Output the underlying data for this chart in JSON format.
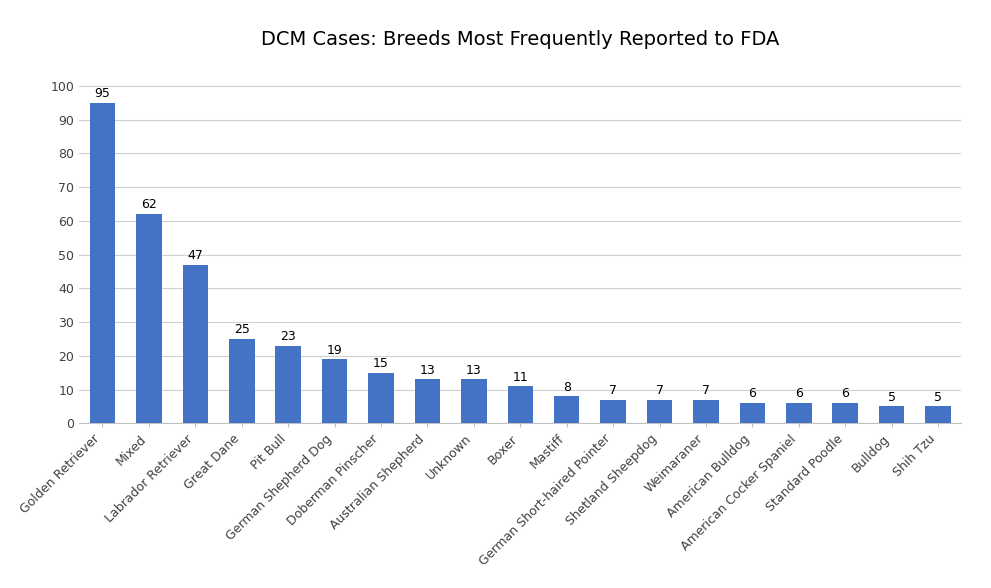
{
  "title": "DCM Cases: Breeds Most Frequently Reported to FDA",
  "categories": [
    "Golden Retriever",
    "Mixed",
    "Labrador Retriever",
    "Great Dane",
    "Pit Bull",
    "German Shepherd Dog",
    "Doberman Pinscher",
    "Australian Shepherd",
    "Unknown",
    "Boxer",
    "Mastiff",
    "German Short-haired Pointer",
    "Shetland Sheepdog",
    "Weimaraner",
    "American Bulldog",
    "American Cocker Spaniel",
    "Standard Poodle",
    "Bulldog",
    "Shih Tzu"
  ],
  "values": [
    95,
    62,
    47,
    25,
    23,
    19,
    15,
    13,
    13,
    11,
    8,
    7,
    7,
    7,
    6,
    6,
    6,
    5,
    5
  ],
  "bar_color": "#4472C4",
  "background_color": "#FFFFFF",
  "title_fontsize": 14,
  "tick_fontsize": 9,
  "value_fontsize": 9,
  "ylim": [
    0,
    108
  ],
  "yticks": [
    0,
    10,
    20,
    30,
    40,
    50,
    60,
    70,
    80,
    90,
    100
  ],
  "grid_color": "#D0D0D0",
  "grid_linewidth": 0.8
}
